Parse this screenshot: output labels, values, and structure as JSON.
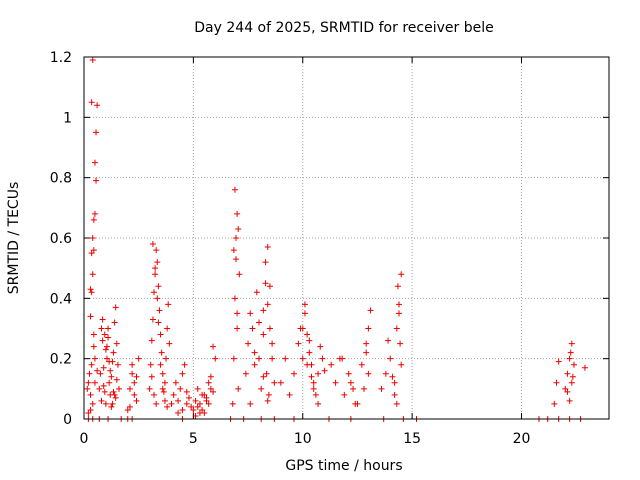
{
  "chart_data": {
    "type": "scatter",
    "title": "Day 244 of 2025, SRMTID for receiver bele",
    "xlabel": "GPS time / hours",
    "ylabel": "SRMTID / TECUs",
    "xlim": [
      0,
      24
    ],
    "ylim": [
      0,
      1.2
    ],
    "xticks": [
      0,
      5,
      10,
      15,
      20
    ],
    "xtick_labels": [
      "0",
      "5",
      "10",
      "15",
      "20"
    ],
    "yticks": [
      0,
      0.2,
      0.4,
      0.6,
      0.8,
      1,
      1.2
    ],
    "ytick_labels": [
      "0",
      "0.2",
      "0.4",
      "0.6",
      "0.8",
      "1",
      "1.2"
    ],
    "grid": true,
    "marker": "+",
    "series": [
      {
        "name": "SRMTID",
        "color": "#ee0000",
        "x": [
          0.15,
          0.2,
          0.25,
          0.3,
          0.3,
          0.35,
          0.35,
          0.4,
          0.4,
          0.45,
          0.45,
          0.5,
          0.5,
          0.55,
          0.55,
          0.6,
          0.35,
          0.4,
          0.45,
          0.5,
          0.3,
          0.4,
          0.5,
          0.6,
          0.2,
          0.3,
          0.35,
          0.45,
          0.7,
          0.75,
          0.8,
          0.85,
          0.9,
          0.95,
          1.0,
          1.05,
          1.1,
          1.15,
          1.2,
          1.25,
          1.3,
          1.35,
          1.4,
          1.45,
          1.5,
          1.55,
          1.6,
          0.8,
          0.9,
          1.0,
          1.1,
          1.2,
          1.3,
          1.4,
          1.5,
          0.85,
          0.95,
          1.05,
          1.15,
          1.25,
          1.35,
          1.45,
          2.0,
          2.1,
          2.2,
          2.3,
          2.4,
          2.5,
          2.2,
          2.3,
          2.1,
          2.4,
          3.0,
          3.05,
          3.1,
          3.15,
          3.2,
          3.25,
          3.3,
          3.35,
          3.4,
          3.45,
          3.5,
          3.55,
          3.6,
          3.65,
          3.7,
          3.75,
          3.8,
          3.85,
          3.9,
          3.15,
          3.25,
          3.35,
          3.2,
          3.3,
          3.1,
          3.4,
          3.5,
          3.6,
          3.7,
          3.8,
          4.0,
          4.1,
          4.2,
          4.3,
          4.4,
          4.5,
          4.6,
          4.7,
          4.8,
          4.9,
          4.3,
          4.5,
          4.7,
          5.0,
          5.1,
          5.2,
          5.3,
          5.4,
          5.5,
          5.6,
          5.7,
          5.8,
          5.9,
          6.0,
          5.2,
          5.4,
          5.6,
          5.8,
          5.1,
          5.3,
          5.5,
          5.7,
          5.9,
          6.8,
          6.85,
          6.9,
          6.95,
          7.0,
          7.05,
          7.1,
          6.9,
          7.0,
          6.85,
          6.95,
          7.0,
          7.05,
          7.4,
          7.5,
          7.6,
          7.7,
          7.8,
          7.9,
          8.0,
          8.1,
          8.2,
          8.3,
          8.4,
          8.5,
          8.6,
          8.3,
          8.4,
          8.5,
          8.2,
          8.35,
          8.45,
          8.6,
          8.7,
          7.6,
          7.8,
          8.0,
          8.2,
          8.4,
          9.0,
          9.2,
          9.4,
          9.6,
          9.8,
          10.0,
          10.1,
          10.2,
          10.3,
          10.4,
          10.5,
          10.6,
          10.7,
          10.8,
          10.9,
          11.0,
          10.1,
          10.3,
          10.5,
          10.7,
          9.9,
          10.0,
          10.2,
          10.4,
          11.3,
          11.5,
          11.7,
          11.9,
          12.1,
          12.3,
          12.5,
          12.7,
          12.9,
          13.0,
          13.1,
          12.9,
          13.0,
          12.8,
          12.4,
          12.2,
          11.8,
          13.6,
          13.8,
          14.0,
          14.2,
          14.3,
          14.4,
          14.5,
          14.35,
          14.4,
          14.45,
          14.2,
          14.3,
          14.5,
          13.9,
          14.1,
          21.5,
          21.6,
          21.7,
          22.0,
          22.1,
          22.2,
          22.3,
          22.4,
          22.2,
          22.3,
          22.1,
          22.25,
          22.35,
          22.9,
          0.2,
          0.4,
          0.7,
          1.1,
          1.7,
          2.0,
          2.2,
          4.5,
          6.7,
          7.3,
          8.1,
          8.7,
          9.6,
          11.2,
          12.2,
          13.7,
          14.6,
          15.2,
          20.8,
          21.2,
          21.7,
          22.2,
          22.7
        ],
        "y": [
          0.1,
          0.12,
          0.15,
          0.34,
          0.43,
          0.42,
          0.55,
          0.48,
          0.6,
          0.56,
          0.66,
          0.68,
          0.85,
          0.79,
          0.95,
          1.04,
          1.05,
          1.19,
          0.24,
          0.2,
          0.08,
          0.05,
          0.12,
          0.16,
          0.02,
          0.03,
          0.18,
          0.28,
          0.1,
          0.15,
          0.3,
          0.26,
          0.17,
          0.09,
          0.05,
          0.2,
          0.27,
          0.12,
          0.08,
          0.14,
          0.19,
          0.22,
          0.32,
          0.37,
          0.25,
          0.18,
          0.1,
          0.06,
          0.11,
          0.23,
          0.3,
          0.16,
          0.05,
          0.08,
          0.13,
          0.33,
          0.28,
          0.24,
          0.19,
          0.04,
          0.09,
          0.07,
          0.03,
          0.1,
          0.18,
          0.12,
          0.06,
          0.2,
          0.15,
          0.08,
          0.04,
          0.14,
          0.1,
          0.18,
          0.26,
          0.33,
          0.42,
          0.5,
          0.56,
          0.52,
          0.44,
          0.36,
          0.28,
          0.22,
          0.15,
          0.09,
          0.12,
          0.2,
          0.3,
          0.38,
          0.25,
          0.58,
          0.48,
          0.4,
          0.08,
          0.05,
          0.14,
          0.32,
          0.18,
          0.1,
          0.06,
          0.04,
          0.05,
          0.08,
          0.12,
          0.06,
          0.1,
          0.15,
          0.18,
          0.09,
          0.07,
          0.04,
          0.02,
          0.03,
          0.05,
          0.03,
          0.06,
          0.1,
          0.05,
          0.08,
          0.02,
          0.07,
          0.12,
          0.14,
          0.09,
          0.2,
          0.04,
          0.03,
          0.06,
          0.1,
          0.01,
          0.02,
          0.08,
          0.05,
          0.24,
          0.05,
          0.2,
          0.4,
          0.6,
          0.68,
          0.63,
          0.48,
          0.76,
          0.3,
          0.56,
          0.53,
          0.35,
          0.1,
          0.15,
          0.25,
          0.35,
          0.3,
          0.18,
          0.42,
          0.2,
          0.1,
          0.28,
          0.45,
          0.38,
          0.3,
          0.2,
          0.52,
          0.57,
          0.44,
          0.36,
          0.15,
          0.08,
          0.25,
          0.12,
          0.05,
          0.22,
          0.32,
          0.14,
          0.06,
          0.12,
          0.2,
          0.08,
          0.15,
          0.25,
          0.3,
          0.38,
          0.28,
          0.22,
          0.18,
          0.12,
          0.08,
          0.15,
          0.24,
          0.2,
          0.16,
          0.35,
          0.26,
          0.1,
          0.05,
          0.3,
          0.2,
          0.18,
          0.14,
          0.18,
          0.12,
          0.2,
          0.08,
          0.15,
          0.1,
          0.05,
          0.18,
          0.25,
          0.3,
          0.36,
          0.22,
          0.15,
          0.1,
          0.05,
          0.12,
          0.2,
          0.1,
          0.15,
          0.2,
          0.12,
          0.3,
          0.38,
          0.48,
          0.44,
          0.35,
          0.25,
          0.08,
          0.05,
          0.18,
          0.26,
          0.14,
          0.05,
          0.12,
          0.19,
          0.1,
          0.15,
          0.2,
          0.25,
          0.18,
          0.06,
          0.12,
          0.09,
          0.22,
          0.14,
          0.17,
          0,
          0,
          0,
          0,
          0,
          0,
          0,
          0,
          0,
          0,
          0,
          0,
          0,
          0,
          0,
          0,
          0,
          0,
          0,
          0,
          0,
          0,
          0
        ]
      }
    ]
  }
}
